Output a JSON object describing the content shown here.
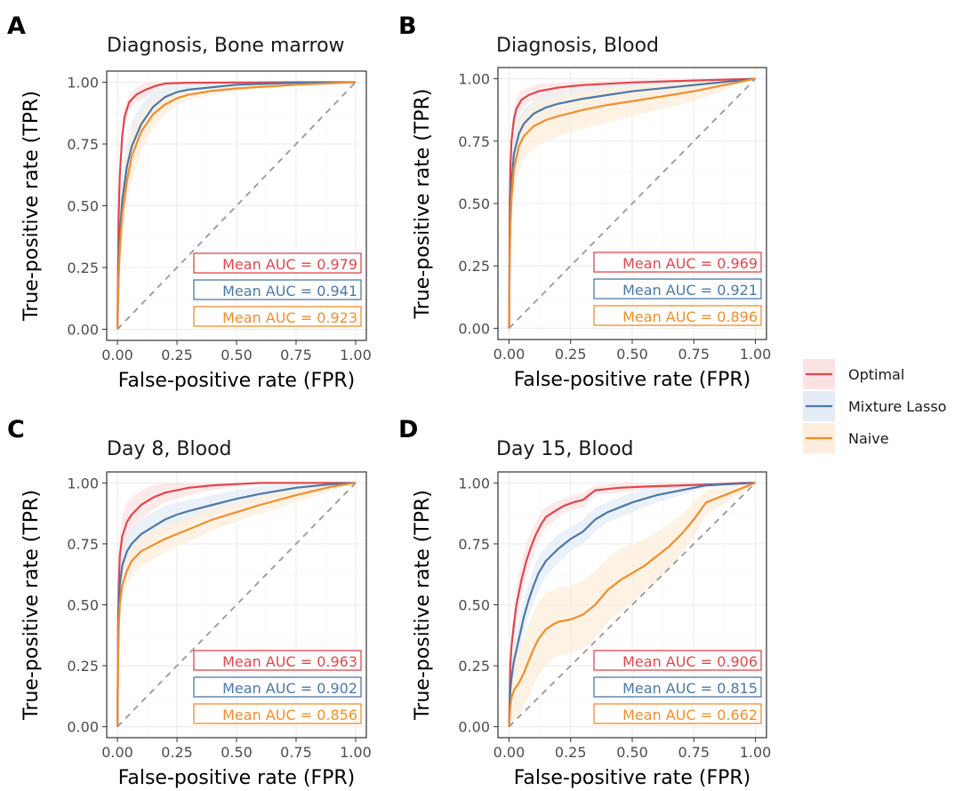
{
  "chart_data": [
    {
      "panel": "A",
      "type": "line",
      "title": "Diagnosis, Bone marrow",
      "xlabel": "False-positive rate (FPR)",
      "ylabel": "True-positive rate (TPR)",
      "xlim": [
        0,
        1
      ],
      "ylim": [
        0,
        1
      ],
      "xticks": [
        "0.00",
        "0.25",
        "0.50",
        "0.75",
        "1.00"
      ],
      "yticks": [
        "0.00",
        "0.25",
        "0.50",
        "0.75",
        "1.00"
      ],
      "grid": true,
      "reference_line": "diagonal",
      "series": [
        {
          "name": "Optimal",
          "color": "#E0474C",
          "x": [
            0,
            0.005,
            0.01,
            0.02,
            0.03,
            0.05,
            0.08,
            0.12,
            0.16,
            0.2,
            0.3,
            0.5,
            0.75,
            1
          ],
          "y": [
            0,
            0.45,
            0.62,
            0.78,
            0.86,
            0.92,
            0.95,
            0.97,
            0.985,
            0.995,
            0.998,
            0.999,
            1,
            1
          ],
          "band": [
            0.06,
            0.06,
            0.06,
            0.05,
            0.04,
            0.03,
            0.03,
            0.03,
            0.02,
            0.01,
            0.005,
            0.002,
            0,
            0
          ],
          "auc_label": "Mean AUC = 0.979"
        },
        {
          "name": "Mixture Lasso",
          "color": "#4C78A8",
          "x": [
            0,
            0.005,
            0.01,
            0.02,
            0.04,
            0.06,
            0.1,
            0.15,
            0.2,
            0.25,
            0.3,
            0.4,
            0.5,
            0.75,
            1
          ],
          "y": [
            0,
            0.25,
            0.38,
            0.52,
            0.66,
            0.74,
            0.83,
            0.9,
            0.94,
            0.96,
            0.97,
            0.98,
            0.99,
            0.998,
            1
          ],
          "band": [
            0.08,
            0.1,
            0.1,
            0.1,
            0.1,
            0.1,
            0.08,
            0.06,
            0.04,
            0.03,
            0.02,
            0.015,
            0.01,
            0.005,
            0
          ],
          "auc_label": "Mean AUC = 0.941"
        },
        {
          "name": "Naive",
          "color": "#F28E2B",
          "x": [
            0,
            0.005,
            0.01,
            0.02,
            0.04,
            0.06,
            0.1,
            0.15,
            0.2,
            0.25,
            0.3,
            0.4,
            0.5,
            0.75,
            1
          ],
          "y": [
            0,
            0.2,
            0.32,
            0.46,
            0.6,
            0.7,
            0.8,
            0.87,
            0.91,
            0.935,
            0.95,
            0.965,
            0.975,
            0.99,
            1
          ],
          "band": [
            0.08,
            0.1,
            0.1,
            0.1,
            0.1,
            0.1,
            0.08,
            0.06,
            0.04,
            0.03,
            0.02,
            0.015,
            0.01,
            0.005,
            0
          ],
          "auc_label": "Mean AUC = 0.923"
        }
      ]
    },
    {
      "panel": "B",
      "type": "line",
      "title": "Diagnosis, Blood",
      "xlabel": "False-positive rate (FPR)",
      "ylabel": "True-positive rate (TPR)",
      "xlim": [
        0,
        1
      ],
      "ylim": [
        0,
        1
      ],
      "xticks": [
        "0.00",
        "0.25",
        "0.50",
        "0.75",
        "1.00"
      ],
      "yticks": [
        "0.00",
        "0.25",
        "0.50",
        "0.75",
        "1.00"
      ],
      "grid": true,
      "reference_line": "diagonal",
      "series": [
        {
          "name": "Optimal",
          "color": "#E0474C",
          "x": [
            0,
            0.003,
            0.006,
            0.01,
            0.02,
            0.03,
            0.05,
            0.08,
            0.12,
            0.2,
            0.3,
            0.5,
            0.75,
            1
          ],
          "y": [
            0,
            0.5,
            0.65,
            0.75,
            0.84,
            0.88,
            0.915,
            0.935,
            0.95,
            0.965,
            0.975,
            0.985,
            0.993,
            1
          ],
          "band": [
            0.05,
            0.06,
            0.06,
            0.05,
            0.05,
            0.04,
            0.04,
            0.03,
            0.03,
            0.02,
            0.015,
            0.01,
            0.005,
            0
          ],
          "auc_label": "Mean AUC = 0.969"
        },
        {
          "name": "Mixture Lasso",
          "color": "#4C78A8",
          "x": [
            0,
            0.003,
            0.006,
            0.01,
            0.02,
            0.04,
            0.06,
            0.1,
            0.15,
            0.2,
            0.3,
            0.4,
            0.5,
            0.75,
            1
          ],
          "y": [
            0,
            0.35,
            0.48,
            0.58,
            0.7,
            0.78,
            0.82,
            0.86,
            0.885,
            0.9,
            0.92,
            0.935,
            0.95,
            0.975,
            1
          ],
          "band": [
            0.06,
            0.08,
            0.08,
            0.08,
            0.08,
            0.07,
            0.06,
            0.05,
            0.05,
            0.045,
            0.04,
            0.035,
            0.03,
            0.02,
            0
          ],
          "auc_label": "Mean AUC = 0.921"
        },
        {
          "name": "Naive",
          "color": "#F28E2B",
          "x": [
            0,
            0.003,
            0.006,
            0.01,
            0.02,
            0.04,
            0.06,
            0.1,
            0.15,
            0.2,
            0.3,
            0.4,
            0.5,
            0.75,
            1
          ],
          "y": [
            0,
            0.3,
            0.42,
            0.52,
            0.64,
            0.73,
            0.77,
            0.81,
            0.835,
            0.85,
            0.875,
            0.895,
            0.91,
            0.95,
            1
          ],
          "band": [
            0.06,
            0.1,
            0.1,
            0.1,
            0.1,
            0.1,
            0.09,
            0.09,
            0.085,
            0.08,
            0.075,
            0.07,
            0.06,
            0.04,
            0
          ],
          "auc_label": "Mean AUC = 0.896"
        }
      ]
    },
    {
      "panel": "C",
      "type": "line",
      "title": "Day 8, Blood",
      "xlabel": "False-positive rate (FPR)",
      "ylabel": "True-positive rate (TPR)",
      "xlim": [
        0,
        1
      ],
      "ylim": [
        0,
        1
      ],
      "xticks": [
        "0.00",
        "0.25",
        "0.50",
        "0.75",
        "1.00"
      ],
      "yticks": [
        "0.00",
        "0.25",
        "0.50",
        "0.75",
        "1.00"
      ],
      "grid": true,
      "reference_line": "diagonal",
      "series": [
        {
          "name": "Optimal",
          "color": "#E0474C",
          "x": [
            0,
            0.003,
            0.006,
            0.01,
            0.02,
            0.04,
            0.06,
            0.1,
            0.15,
            0.2,
            0.3,
            0.4,
            0.5,
            0.6,
            0.75,
            1
          ],
          "y": [
            0,
            0.45,
            0.6,
            0.7,
            0.78,
            0.84,
            0.87,
            0.91,
            0.94,
            0.96,
            0.98,
            0.99,
            0.995,
            1,
            1,
            1
          ],
          "band": [
            0.05,
            0.08,
            0.08,
            0.08,
            0.08,
            0.08,
            0.07,
            0.06,
            0.05,
            0.04,
            0.03,
            0.02,
            0.01,
            0.005,
            0,
            0
          ],
          "auc_label": "Mean AUC = 0.963"
        },
        {
          "name": "Mixture Lasso",
          "color": "#4C78A8",
          "x": [
            0,
            0.003,
            0.006,
            0.01,
            0.02,
            0.04,
            0.06,
            0.1,
            0.15,
            0.2,
            0.25,
            0.3,
            0.4,
            0.5,
            0.6,
            0.75,
            0.9,
            1
          ],
          "y": [
            0,
            0.35,
            0.5,
            0.58,
            0.66,
            0.72,
            0.75,
            0.79,
            0.82,
            0.85,
            0.87,
            0.885,
            0.91,
            0.935,
            0.955,
            0.98,
            0.995,
            1
          ],
          "band": [
            0.05,
            0.06,
            0.06,
            0.06,
            0.06,
            0.06,
            0.06,
            0.06,
            0.06,
            0.055,
            0.05,
            0.045,
            0.04,
            0.035,
            0.03,
            0.02,
            0.01,
            0
          ],
          "auc_label": "Mean AUC = 0.902"
        },
        {
          "name": "Naive",
          "color": "#F28E2B",
          "x": [
            0,
            0.003,
            0.006,
            0.01,
            0.02,
            0.04,
            0.06,
            0.1,
            0.15,
            0.2,
            0.3,
            0.4,
            0.5,
            0.6,
            0.75,
            0.9,
            1
          ],
          "y": [
            0,
            0.3,
            0.42,
            0.5,
            0.58,
            0.64,
            0.68,
            0.72,
            0.745,
            0.77,
            0.81,
            0.85,
            0.88,
            0.91,
            0.95,
            0.985,
            1
          ],
          "band": [
            0.05,
            0.06,
            0.06,
            0.06,
            0.06,
            0.06,
            0.06,
            0.06,
            0.06,
            0.055,
            0.05,
            0.045,
            0.04,
            0.035,
            0.03,
            0.015,
            0
          ],
          "auc_label": "Mean AUC = 0.856"
        }
      ]
    },
    {
      "panel": "D",
      "type": "line",
      "title": "Day 15, Blood",
      "xlabel": "False-positive rate (FPR)",
      "ylabel": "True-positive rate (TPR)",
      "xlim": [
        0,
        1
      ],
      "ylim": [
        0,
        1
      ],
      "xticks": [
        "0.00",
        "0.25",
        "0.50",
        "0.75",
        "1.00"
      ],
      "yticks": [
        "0.00",
        "0.25",
        "0.50",
        "0.75",
        "1.00"
      ],
      "grid": true,
      "reference_line": "diagonal",
      "series": [
        {
          "name": "Optimal",
          "color": "#E0474C",
          "x": [
            0,
            0.005,
            0.01,
            0.02,
            0.03,
            0.05,
            0.07,
            0.09,
            0.11,
            0.13,
            0.15,
            0.18,
            0.22,
            0.26,
            0.3,
            0.35,
            0.45,
            0.55,
            0.7,
            0.85,
            0.95,
            1
          ],
          "y": [
            0,
            0.25,
            0.33,
            0.42,
            0.5,
            0.6,
            0.68,
            0.74,
            0.79,
            0.83,
            0.86,
            0.88,
            0.905,
            0.92,
            0.93,
            0.97,
            0.98,
            0.985,
            0.99,
            0.995,
            1,
            1
          ],
          "band": [
            0.05,
            0.06,
            0.06,
            0.07,
            0.07,
            0.07,
            0.07,
            0.06,
            0.05,
            0.05,
            0.04,
            0.04,
            0.03,
            0.03,
            0.03,
            0.02,
            0.02,
            0.015,
            0.01,
            0.005,
            0,
            0
          ],
          "auc_label": "Mean AUC = 0.906"
        },
        {
          "name": "Mixture Lasso",
          "color": "#4C78A8",
          "x": [
            0,
            0.005,
            0.01,
            0.02,
            0.04,
            0.06,
            0.08,
            0.1,
            0.12,
            0.15,
            0.2,
            0.25,
            0.3,
            0.35,
            0.4,
            0.5,
            0.6,
            0.7,
            0.8,
            0.9,
            1
          ],
          "y": [
            0,
            0.15,
            0.2,
            0.27,
            0.36,
            0.45,
            0.52,
            0.58,
            0.63,
            0.68,
            0.73,
            0.77,
            0.8,
            0.85,
            0.88,
            0.92,
            0.95,
            0.97,
            0.99,
            0.995,
            1
          ],
          "band": [
            0.05,
            0.06,
            0.06,
            0.07,
            0.07,
            0.07,
            0.07,
            0.07,
            0.07,
            0.06,
            0.06,
            0.05,
            0.05,
            0.05,
            0.04,
            0.04,
            0.03,
            0.02,
            0.01,
            0.005,
            0
          ],
          "auc_label": "Mean AUC = 0.815"
        },
        {
          "name": "Naive",
          "color": "#F28E2B",
          "x": [
            0,
            0.005,
            0.01,
            0.02,
            0.04,
            0.06,
            0.08,
            0.1,
            0.12,
            0.15,
            0.18,
            0.2,
            0.25,
            0.3,
            0.35,
            0.4,
            0.45,
            0.5,
            0.55,
            0.6,
            0.65,
            0.7,
            0.75,
            0.8,
            0.9,
            1
          ],
          "y": [
            0,
            0.08,
            0.12,
            0.15,
            0.18,
            0.22,
            0.27,
            0.32,
            0.36,
            0.4,
            0.42,
            0.43,
            0.44,
            0.46,
            0.5,
            0.56,
            0.6,
            0.63,
            0.66,
            0.7,
            0.74,
            0.79,
            0.85,
            0.92,
            0.96,
            1
          ],
          "band": [
            0.05,
            0.1,
            0.12,
            0.12,
            0.14,
            0.14,
            0.15,
            0.15,
            0.15,
            0.15,
            0.14,
            0.14,
            0.14,
            0.14,
            0.14,
            0.13,
            0.13,
            0.12,
            0.11,
            0.1,
            0.09,
            0.08,
            0.07,
            0.05,
            0.03,
            0
          ],
          "auc_label": "Mean AUC = 0.662"
        }
      ]
    }
  ],
  "legend": {
    "placement": "right",
    "items": [
      {
        "label": "Optimal",
        "color": "#E0474C",
        "fill": "#FBE3E4"
      },
      {
        "label": "Mixture Lasso",
        "color": "#4C78A8",
        "fill": "#E4ECF5"
      },
      {
        "label": "Naive",
        "color": "#F28E2B",
        "fill": "#FDEDDC"
      }
    ]
  }
}
